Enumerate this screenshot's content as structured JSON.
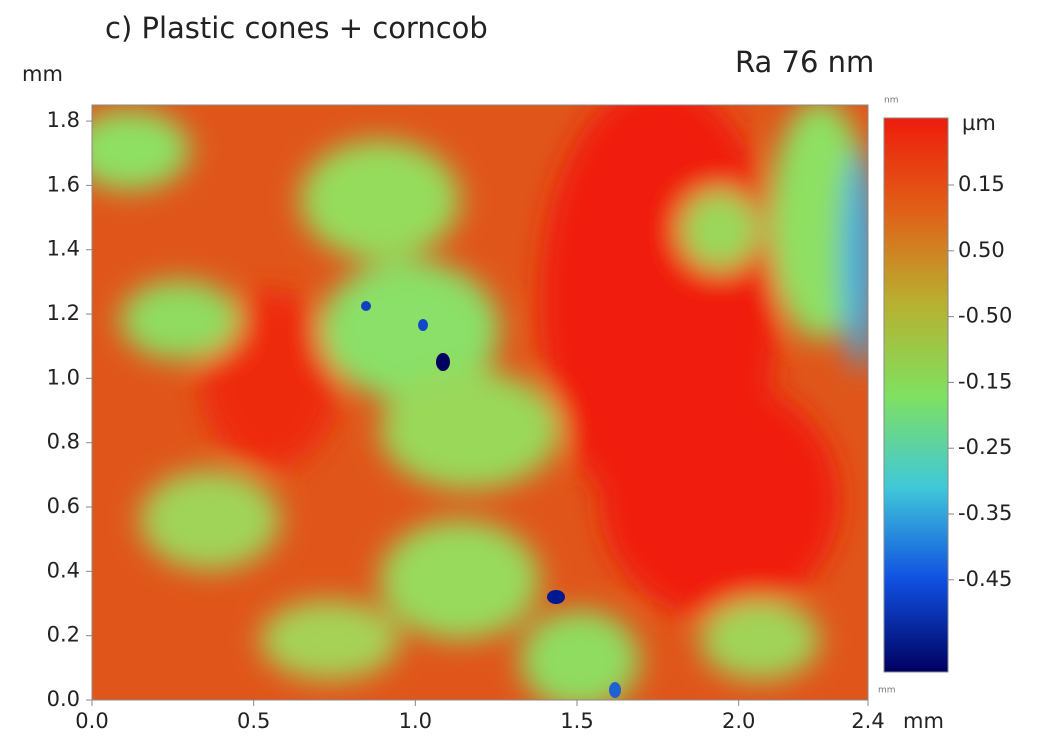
{
  "chart_data": {
    "type": "heatmap",
    "title": "c) Plastic cones + corncob",
    "annotation": "Ra 76 nm",
    "y_unit": "mm",
    "x_unit": "mm",
    "colorbar_unit": "µm",
    "colorbar_top_unit": "nm",
    "colorbar_bottom_unit": "mm",
    "xlim": [
      0,
      2.4
    ],
    "xticks": [
      {
        "value": 0,
        "label": "0.0"
      },
      0.5,
      {
        "value": 1,
        "label": "1.0"
      },
      1.5,
      {
        "value": 2,
        "label": "2.0"
      },
      2.4
    ],
    "ylim": [
      0,
      1.85
    ],
    "yticks": [
      {
        "value": 0,
        "label": "0.0"
      },
      0.2,
      0.4,
      0.6,
      0.8,
      {
        "value": 1,
        "label": "1.0"
      },
      1.2,
      1.4,
      1.6,
      1.8
    ],
    "colorbar_labels": [
      "0.15",
      "0.50",
      "-0.50",
      "-0.15",
      "-0.25",
      "-0.35",
      "-0.45"
    ],
    "colors": [
      "#ee1c0c",
      "#e06018",
      "#b8b030",
      "#80e060",
      "#40c8d8",
      "#1050e0",
      "#000060"
    ]
  }
}
